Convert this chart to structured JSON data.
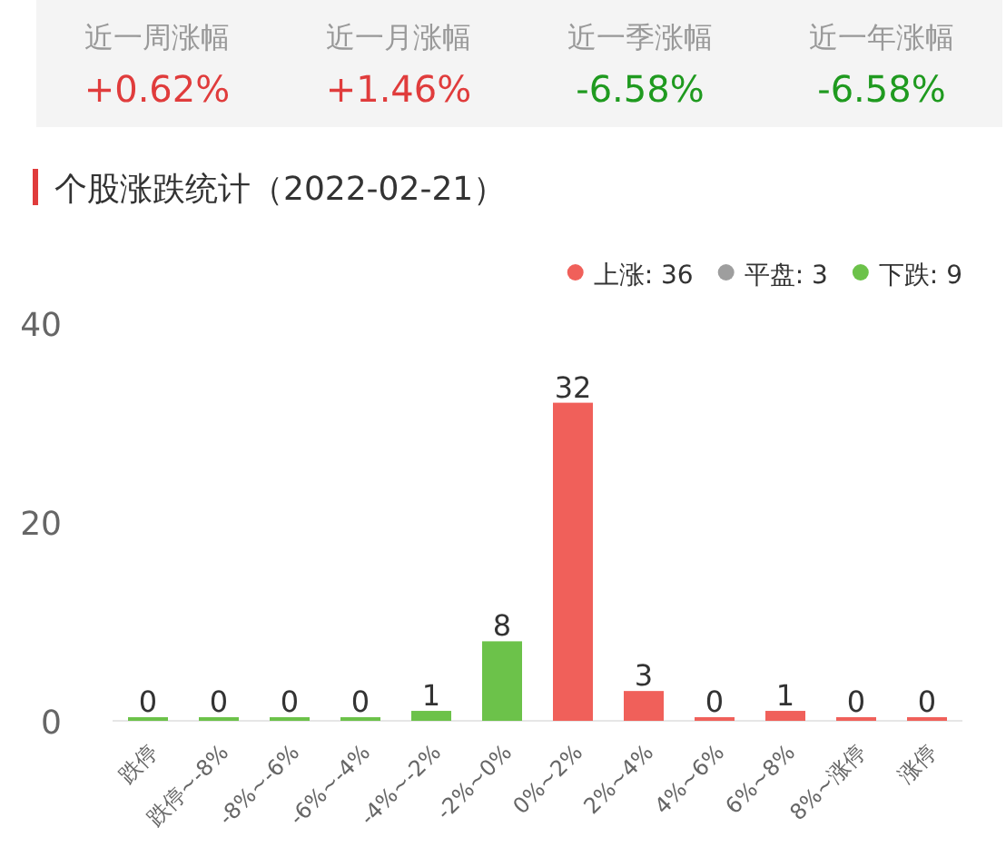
{
  "chart_data": [
    {
      "type": "other",
      "categories": [
        "近一周涨幅",
        "近一月涨幅",
        "近一季涨幅",
        "近一年涨幅"
      ],
      "value_labels": [
        "+0.62%",
        "+1.46%",
        "-6.58%",
        "-6.58%"
      ],
      "colors": [
        "#e03c3c",
        "#e03c3c",
        "#1f9a1f",
        "#1f9a1f"
      ]
    },
    {
      "type": "bar",
      "title": "个股涨跌统计（2022-02-21）",
      "categories": [
        "跌停",
        "跌停~-8%",
        "-8%~-6%",
        "-6%~-4%",
        "-4%~-2%",
        "-2%~0%",
        "0%~2%",
        "2%~4%",
        "4%~6%",
        "6%~8%",
        "8%~涨停",
        "涨停"
      ],
      "series": [
        {
          "name": "上涨: 36",
          "color": "#f0605a",
          "values": [
            null,
            null,
            null,
            null,
            null,
            null,
            32,
            3,
            0,
            1,
            0,
            0
          ]
        },
        {
          "name": "平盘: 3",
          "color": "#9e9e9e",
          "values": [
            null,
            null,
            null,
            null,
            null,
            null,
            null,
            null,
            null,
            null,
            null,
            null
          ]
        },
        {
          "name": "下跌: 9",
          "color": "#6cc24a",
          "values": [
            0,
            0,
            0,
            0,
            1,
            8,
            null,
            null,
            null,
            null,
            null,
            null
          ]
        }
      ],
      "ylim": [
        0,
        40
      ],
      "yticks": [
        0,
        20,
        40
      ],
      "data_labels": true,
      "legend": "top right",
      "grid": false
    }
  ]
}
